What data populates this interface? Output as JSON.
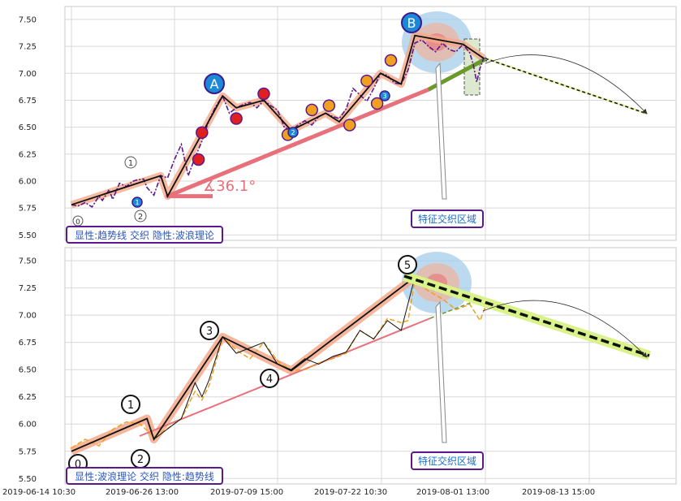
{
  "chart_data": [
    {
      "type": "line",
      "title": "",
      "xlabel": "",
      "ylabel": "",
      "ylim": [
        5.45,
        7.62
      ],
      "yticks": [
        "5.50",
        "5.75",
        "6.00",
        "6.25",
        "6.50",
        "6.75",
        "7.00",
        "7.25",
        "7.50"
      ],
      "grid": true,
      "legend_text": "显性:趋势线 交织 隐性:波浪理论",
      "zone_label": "特征交织区域",
      "angle_label": "∡36.1°",
      "wave_labels": {
        "A": "A",
        "B": "B",
        "p0": "0",
        "p1": "1",
        "p2": "2",
        "p1_blue": "1",
        "p2_blue": "2",
        "p3_blue": "3"
      },
      "colors": {
        "price": "#5a1a8c",
        "trend": "#e8707a",
        "future_trend": "#6a9a2a",
        "forecast": "#e8f5b0",
        "zone": "#9ecbe9"
      },
      "series": [
        {
          "values": [
            [
              0,
              5.78
            ],
            [
              2,
              5.77
            ],
            [
              4,
              5.8
            ],
            [
              6,
              5.76
            ],
            [
              8,
              5.86
            ],
            [
              9,
              5.82
            ],
            [
              11,
              5.92
            ],
            [
              12,
              5.83
            ],
            [
              14,
              5.98
            ],
            [
              16,
              5.95
            ],
            [
              18,
              6.0
            ],
            [
              19,
              6.01
            ],
            [
              21,
              6.02
            ],
            [
              22,
              5.94
            ],
            [
              24,
              5.87
            ],
            [
              26,
              6.05
            ],
            [
              28,
              6.03
            ],
            [
              30,
              6.2
            ],
            [
              32,
              6.34
            ],
            [
              34,
              6.05
            ],
            [
              36,
              6.22
            ],
            [
              38,
              6.37
            ],
            [
              40,
              6.56
            ],
            [
              42,
              6.69
            ],
            [
              44,
              6.79
            ],
            [
              46,
              6.63
            ],
            [
              48,
              6.68
            ],
            [
              50,
              6.71
            ],
            [
              52,
              6.73
            ],
            [
              54,
              6.68
            ],
            [
              56,
              6.75
            ],
            [
              58,
              6.7
            ],
            [
              60,
              6.66
            ],
            [
              62,
              6.5
            ],
            [
              64,
              6.47
            ],
            [
              66,
              6.52
            ],
            [
              68,
              6.56
            ],
            [
              70,
              6.52
            ],
            [
              72,
              6.6
            ],
            [
              74,
              6.63
            ],
            [
              76,
              6.6
            ],
            [
              78,
              6.58
            ],
            [
              80,
              6.67
            ],
            [
              82,
              6.86
            ],
            [
              84,
              6.8
            ],
            [
              86,
              6.74
            ],
            [
              88,
              6.86
            ],
            [
              90,
              7.0
            ],
            [
              92,
              6.98
            ],
            [
              94,
              6.91
            ],
            [
              96,
              6.9
            ],
            [
              98,
              7.03
            ],
            [
              100,
              7.28
            ],
            [
              102,
              7.31
            ],
            [
              104,
              7.25
            ],
            [
              106,
              7.2
            ],
            [
              108,
              7.28
            ],
            [
              110,
              7.22
            ],
            [
              112,
              7.2
            ],
            [
              114,
              7.27
            ],
            [
              116,
              7.19
            ],
            [
              117,
              7.08
            ],
            [
              118,
              6.92
            ],
            [
              119,
              7.05
            ],
            [
              120,
              7.14
            ],
            [
              121,
              7.11
            ]
          ]
        }
      ]
    },
    {
      "type": "line",
      "title": "",
      "xlabel": "",
      "ylabel": "",
      "ylim": [
        5.45,
        7.62
      ],
      "yticks": [
        "5.50",
        "5.75",
        "6.00",
        "6.25",
        "6.50",
        "6.75",
        "7.00",
        "7.25",
        "7.50"
      ],
      "xticks": [
        "2019-06-14 10:30",
        "2019-06-26 13:00",
        "2019-07-09 15:00",
        "2019-07-22 10:30",
        "2019-08-01 13:00",
        "2019-08-13 15:00"
      ],
      "grid": true,
      "legend_text": "显性:波浪理论 交织 隐性:趋势线",
      "zone_label": "特征交织区域",
      "wave_labels": {
        "w0": "0",
        "w1": "1",
        "w2": "2",
        "w3": "3",
        "w4": "4",
        "w5": "5"
      },
      "colors": {
        "price": "#f0a020",
        "wave": "#f4a98a",
        "trend": "#e8707a",
        "forecast": "#d9f28a"
      },
      "series": [
        {
          "values": [
            [
              0,
              5.78
            ],
            [
              4,
              5.86
            ],
            [
              8,
              5.8
            ],
            [
              12,
              5.95
            ],
            [
              16,
              6.02
            ],
            [
              20,
              6.0
            ],
            [
              24,
              5.88
            ],
            [
              28,
              5.96
            ],
            [
              32,
              6.05
            ],
            [
              36,
              6.3
            ],
            [
              38,
              6.22
            ],
            [
              40,
              6.35
            ],
            [
              42,
              6.56
            ],
            [
              44,
              6.8
            ],
            [
              48,
              6.68
            ],
            [
              52,
              6.6
            ],
            [
              56,
              6.75
            ],
            [
              60,
              6.58
            ],
            [
              64,
              6.49
            ],
            [
              68,
              6.5
            ],
            [
              72,
              6.56
            ],
            [
              76,
              6.6
            ],
            [
              80,
              6.65
            ],
            [
              84,
              6.86
            ],
            [
              88,
              6.78
            ],
            [
              92,
              6.97
            ],
            [
              96,
              6.93
            ],
            [
              98,
              6.95
            ],
            [
              100,
              7.32
            ],
            [
              104,
              7.22
            ],
            [
              108,
              7.15
            ],
            [
              112,
              7.05
            ],
            [
              116,
              7.1
            ],
            [
              119,
              6.95
            ],
            [
              121,
              7.12
            ]
          ]
        }
      ]
    }
  ]
}
